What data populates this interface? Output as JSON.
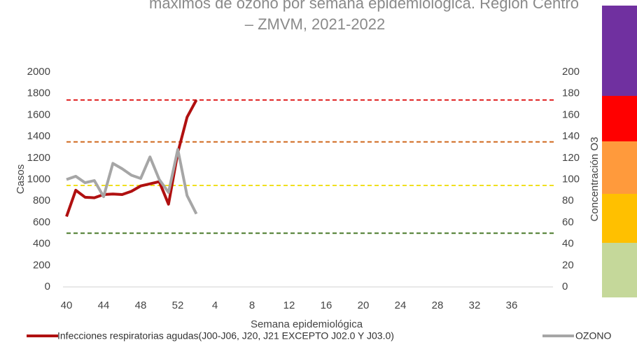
{
  "chart_data": {
    "type": "line",
    "title_lines": [
      "máximos de ozono por semana epidemiológica. Región Centro",
      "– ZMVM, 2021-2022"
    ],
    "x_label": "Semana epidemiológica",
    "y_label": "Casos",
    "y2_label": "Concentración O3",
    "categories": [
      "40",
      null,
      null,
      null,
      "44",
      null,
      null,
      null,
      "48",
      null,
      null,
      null,
      "52",
      null,
      null,
      null,
      "4",
      null,
      null,
      null,
      "8",
      null,
      null,
      null,
      "12",
      null,
      null,
      null,
      "16",
      null,
      null,
      null,
      "20",
      null,
      null,
      null,
      "24",
      null,
      null,
      null,
      "28",
      null,
      null,
      null,
      "32",
      null,
      null,
      null,
      "36",
      null,
      null,
      null,
      null
    ],
    "series": [
      {
        "name": "Infecciones respiratorias agudas(J00-J06, J20, J21 EXCEPTO J02.0 Y J03.0)",
        "color": "#b01010",
        "values": [
          655,
          900,
          835,
          830,
          860,
          865,
          860,
          890,
          940,
          960,
          980,
          770,
          1250,
          1580,
          1740,
          null,
          null,
          null,
          null,
          null,
          null,
          null,
          null,
          null,
          null,
          null,
          null,
          null,
          null,
          null,
          null,
          null,
          null,
          null,
          null,
          null,
          null,
          null,
          null,
          null,
          null,
          null,
          null,
          null,
          null,
          null,
          null,
          null,
          null,
          null,
          null,
          null,
          null
        ]
      },
      {
        "name": "OZONO",
        "color": "#a6a6a6",
        "axis": "y2",
        "values": [
          100,
          103,
          97,
          99,
          84,
          115,
          110,
          104,
          101,
          121,
          100,
          88,
          128,
          85,
          68,
          null,
          null,
          null,
          null,
          null,
          null,
          null,
          null,
          null,
          null,
          null,
          null,
          null,
          null,
          null,
          null,
          null,
          null,
          null,
          null,
          null,
          null,
          null,
          null,
          null,
          null,
          null,
          null,
          null,
          null,
          null,
          null,
          null,
          null,
          null,
          null,
          null,
          null
        ]
      }
    ],
    "thresholds": [
      {
        "value": 174,
        "color": "#e02020"
      },
      {
        "value": 135,
        "color": "#d06a20"
      },
      {
        "value": 94.5,
        "color": "#f0e020"
      },
      {
        "value": 50,
        "color": "#4a7a2a"
      }
    ],
    "ylim": [
      0,
      2000
    ],
    "yticks": [
      0,
      200,
      400,
      600,
      800,
      1000,
      1200,
      1400,
      1600,
      1800,
      2000
    ],
    "y2lim": [
      0,
      200
    ],
    "y2ticks": [
      0,
      20,
      40,
      60,
      80,
      100,
      120,
      140,
      160,
      180,
      200
    ]
  }
}
